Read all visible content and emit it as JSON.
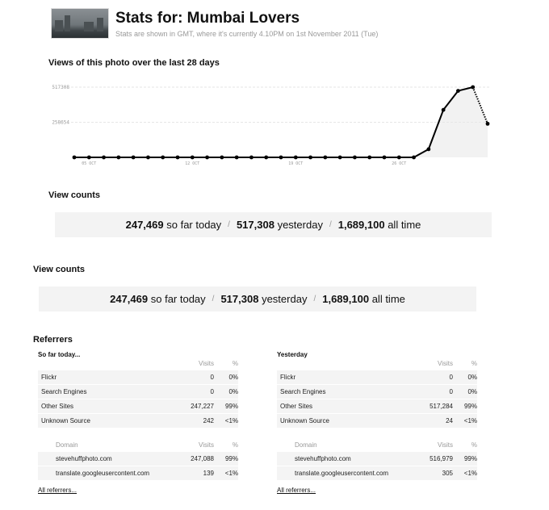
{
  "header": {
    "title": "Stats for: Mumbai Lovers",
    "subtitle": "Stats are shown in GMT, where it's currently 4.10PM on 1st November 2011 (Tue)"
  },
  "chart_section": {
    "heading": "Views of this photo over the last 28 days"
  },
  "chart_data": {
    "type": "line",
    "y_tick_labels": [
      "517308",
      "258654"
    ],
    "x_tick_labels": [
      "05 OCT",
      "12 OCT",
      "19 OCT",
      "26 OCT"
    ],
    "ylim": [
      0,
      517308
    ],
    "x": [
      "04 OCT",
      "05 OCT",
      "06 OCT",
      "07 OCT",
      "08 OCT",
      "09 OCT",
      "10 OCT",
      "11 OCT",
      "12 OCT",
      "13 OCT",
      "14 OCT",
      "15 OCT",
      "16 OCT",
      "17 OCT",
      "18 OCT",
      "19 OCT",
      "20 OCT",
      "21 OCT",
      "22 OCT",
      "23 OCT",
      "24 OCT",
      "25 OCT",
      "26 OCT",
      "27 OCT",
      "28 OCT",
      "29 OCT",
      "30 OCT",
      "31 OCT",
      "01 NOV"
    ],
    "values": [
      0,
      0,
      0,
      0,
      0,
      0,
      0,
      0,
      0,
      0,
      0,
      0,
      0,
      0,
      0,
      0,
      0,
      0,
      0,
      0,
      0,
      0,
      0,
      0,
      60000,
      350000,
      490000,
      517308,
      247469
    ],
    "last_segment_dotted": true,
    "colors": {
      "line": "#000000",
      "area": "#f2f2f2",
      "grid": "#e6e6e6"
    }
  },
  "view_counts_1": {
    "heading": "View counts",
    "today": "247,469",
    "today_label": "so far today",
    "yesterday": "517,308",
    "yesterday_label": "yesterday",
    "all_time": "1,689,100",
    "all_time_label": "all time",
    "separator": "/"
  },
  "view_counts_2": {
    "heading": "View counts",
    "today": "247,469",
    "today_label": "so far today",
    "yesterday": "517,308",
    "yesterday_label": "yesterday",
    "all_time": "1,689,100",
    "all_time_label": "all time",
    "separator": "/"
  },
  "referrers": {
    "heading": "Referrers",
    "today": {
      "title": "So far today...",
      "col_visits": "Visits",
      "col_pct": "%",
      "rows": [
        {
          "name": "Flickr",
          "visits": "0",
          "pct": "0%"
        },
        {
          "name": "Search Engines",
          "visits": "0",
          "pct": "0%"
        },
        {
          "name": "Other Sites",
          "visits": "247,227",
          "pct": "99%"
        },
        {
          "name": "Unknown Source",
          "visits": "242",
          "pct": "<1%"
        }
      ],
      "domain_col": "Domain",
      "domain_visits_col": "Visits",
      "domain_pct_col": "%",
      "domains": [
        {
          "name": "stevehuffphoto.com",
          "visits": "247,088",
          "pct": "99%"
        },
        {
          "name": "translate.googleusercontent.com",
          "visits": "139",
          "pct": "<1%"
        }
      ],
      "all_link": "All referrers..."
    },
    "yesterday": {
      "title": "Yesterday",
      "col_visits": "Visits",
      "col_pct": "%",
      "rows": [
        {
          "name": "Flickr",
          "visits": "0",
          "pct": "0%"
        },
        {
          "name": "Search Engines",
          "visits": "0",
          "pct": "0%"
        },
        {
          "name": "Other Sites",
          "visits": "517,284",
          "pct": "99%"
        },
        {
          "name": "Unknown Source",
          "visits": "24",
          "pct": "<1%"
        }
      ],
      "domain_col": "Domain",
      "domain_visits_col": "Visits",
      "domain_pct_col": "%",
      "domains": [
        {
          "name": "stevehuffphoto.com",
          "visits": "516,979",
          "pct": "99%"
        },
        {
          "name": "translate.googleusercontent.com",
          "visits": "305",
          "pct": "<1%"
        }
      ],
      "all_link": "All referrers..."
    }
  }
}
